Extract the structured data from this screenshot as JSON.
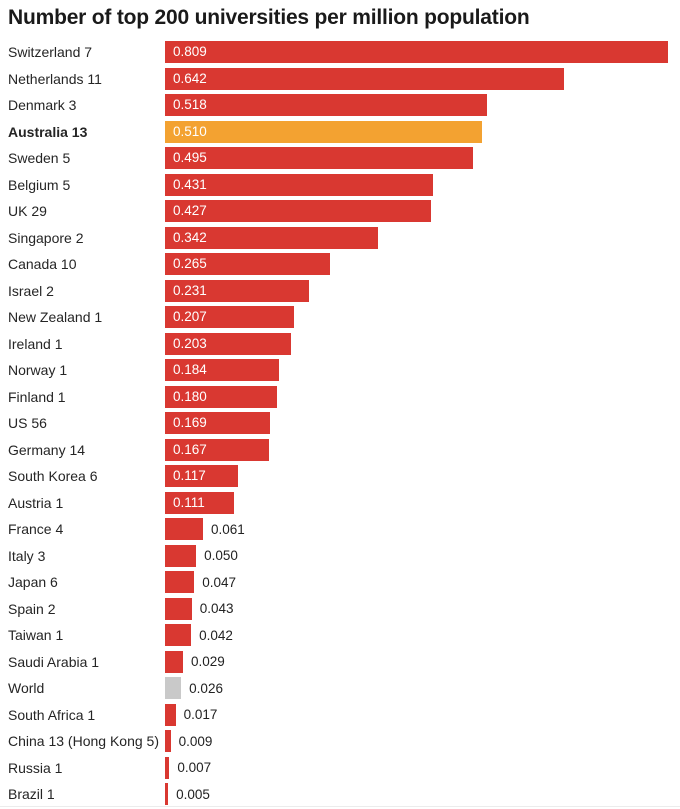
{
  "title": "Number of top 200 universities per million population",
  "chart_data": {
    "type": "bar",
    "orientation": "horizontal",
    "title": "Number of top 200 universities per million population",
    "xlabel": "",
    "ylabel": "",
    "xlim": [
      0,
      0.82
    ],
    "grid": false,
    "legend": "none",
    "value_label_rule": "white label inside bar when bar is wide enough, dark label right of bar otherwise",
    "colors": {
      "bar_default": "#d93831",
      "bar_highlight": "#f3a231",
      "bar_muted": "#c9c9c9",
      "value_inside": "#ffffff",
      "value_outside": "#222222",
      "category_text": "#252525",
      "title_text": "#1a1a1a"
    },
    "highlighted_category": "Australia 13",
    "muted_category": "World",
    "bars": [
      {
        "label": "Switzerland 7",
        "value": 0.809,
        "display": "0.809",
        "color": "default",
        "bold": false
      },
      {
        "label": "Netherlands 11",
        "value": 0.642,
        "display": "0.642",
        "color": "default",
        "bold": false
      },
      {
        "label": "Denmark 3",
        "value": 0.518,
        "display": "0.518",
        "color": "default",
        "bold": false
      },
      {
        "label": "Australia 13",
        "value": 0.51,
        "display": "0.510",
        "color": "highlight",
        "bold": true
      },
      {
        "label": "Sweden 5",
        "value": 0.495,
        "display": "0.495",
        "color": "default",
        "bold": false
      },
      {
        "label": "Belgium 5",
        "value": 0.431,
        "display": "0.431",
        "color": "default",
        "bold": false
      },
      {
        "label": "UK 29",
        "value": 0.427,
        "display": "0.427",
        "color": "default",
        "bold": false
      },
      {
        "label": "Singapore 2",
        "value": 0.342,
        "display": "0.342",
        "color": "default",
        "bold": false
      },
      {
        "label": "Canada 10",
        "value": 0.265,
        "display": "0.265",
        "color": "default",
        "bold": false
      },
      {
        "label": "Israel 2",
        "value": 0.231,
        "display": "0.231",
        "color": "default",
        "bold": false
      },
      {
        "label": "New Zealand 1",
        "value": 0.207,
        "display": "0.207",
        "color": "default",
        "bold": false
      },
      {
        "label": "Ireland 1",
        "value": 0.203,
        "display": "0.203",
        "color": "default",
        "bold": false
      },
      {
        "label": "Norway 1",
        "value": 0.184,
        "display": "0.184",
        "color": "default",
        "bold": false
      },
      {
        "label": "Finland 1",
        "value": 0.18,
        "display": "0.180",
        "color": "default",
        "bold": false
      },
      {
        "label": "US 56",
        "value": 0.169,
        "display": "0.169",
        "color": "default",
        "bold": false
      },
      {
        "label": "Germany 14",
        "value": 0.167,
        "display": "0.167",
        "color": "default",
        "bold": false
      },
      {
        "label": "South Korea 6",
        "value": 0.117,
        "display": "0.117",
        "color": "default",
        "bold": false
      },
      {
        "label": "Austria 1",
        "value": 0.111,
        "display": "0.111",
        "color": "default",
        "bold": false
      },
      {
        "label": "France 4",
        "value": 0.061,
        "display": "0.061",
        "color": "default",
        "bold": false
      },
      {
        "label": "Italy 3",
        "value": 0.05,
        "display": "0.050",
        "color": "default",
        "bold": false
      },
      {
        "label": "Japan 6",
        "value": 0.047,
        "display": "0.047",
        "color": "default",
        "bold": false
      },
      {
        "label": "Spain 2",
        "value": 0.043,
        "display": "0.043",
        "color": "default",
        "bold": false
      },
      {
        "label": "Taiwan 1",
        "value": 0.042,
        "display": "0.042",
        "color": "default",
        "bold": false
      },
      {
        "label": "Saudi Arabia 1",
        "value": 0.029,
        "display": "0.029",
        "color": "default",
        "bold": false
      },
      {
        "label": "World",
        "value": 0.026,
        "display": "0.026",
        "color": "muted",
        "bold": false
      },
      {
        "label": "South Africa 1",
        "value": 0.017,
        "display": "0.017",
        "color": "default",
        "bold": false
      },
      {
        "label": "China 13 (Hong Kong 5)",
        "value": 0.009,
        "display": "0.009",
        "color": "default",
        "bold": false
      },
      {
        "label": "Russia 1",
        "value": 0.007,
        "display": "0.007",
        "color": "default",
        "bold": false
      },
      {
        "label": "Brazil 1",
        "value": 0.005,
        "display": "0.005",
        "color": "default",
        "bold": false
      }
    ]
  }
}
